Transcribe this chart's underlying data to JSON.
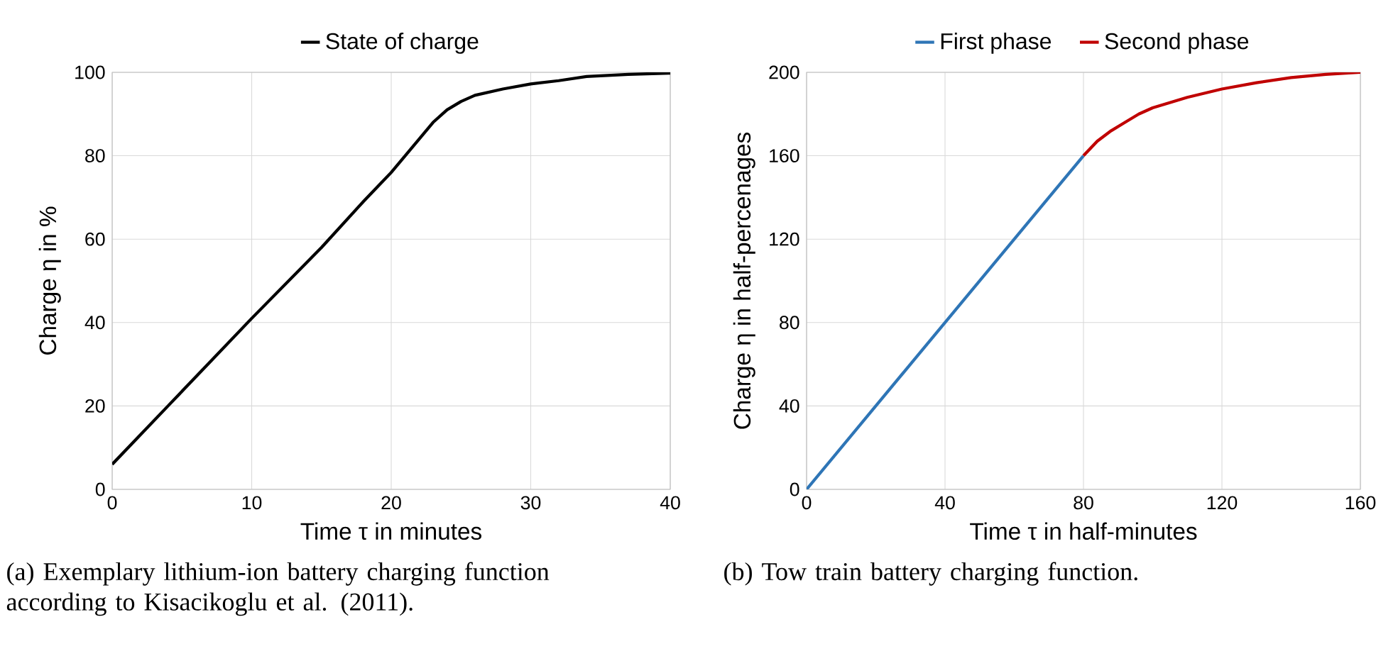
{
  "chart_data": [
    {
      "type": "line",
      "xlabel": "Time τ in minutes",
      "ylabel": "Charge η in %",
      "xlim": [
        0,
        40
      ],
      "ylim": [
        0,
        100
      ],
      "xticks": [
        0,
        10,
        20,
        30,
        40
      ],
      "yticks": [
        0,
        20,
        40,
        60,
        80,
        100
      ],
      "grid": true,
      "legend": "top",
      "series": [
        {
          "name": "State of charge",
          "color": "#000000",
          "x": [
            0,
            4,
            10,
            15,
            18,
            20,
            22,
            23,
            24,
            25,
            26,
            28,
            30,
            32,
            34,
            37,
            40
          ],
          "values": [
            6,
            20,
            41,
            58,
            69,
            76,
            84,
            88,
            91,
            93,
            94.5,
            96,
            97.2,
            98,
            99,
            99.5,
            99.8
          ]
        }
      ],
      "annotations": [
        "(a)  Exemplary lithium-ion battery charging function according to Kisacikoglu et al. (2011)."
      ]
    },
    {
      "type": "line",
      "xlabel": "Time τ in half-minutes",
      "ylabel": "Charge η in half-percenages",
      "xlim": [
        0,
        160
      ],
      "ylim": [
        0,
        200
      ],
      "xticks": [
        0,
        40,
        80,
        120,
        160
      ],
      "yticks": [
        0,
        40,
        80,
        120,
        160,
        200
      ],
      "grid": true,
      "legend": "top",
      "series": [
        {
          "name": "First phase",
          "color": "#2e75b6",
          "x": [
            0,
            80
          ],
          "values": [
            0,
            160
          ]
        },
        {
          "name": "Second phase",
          "color": "#c00000",
          "x": [
            80,
            84,
            88,
            92,
            96,
            100,
            110,
            120,
            130,
            140,
            150,
            160
          ],
          "values": [
            160,
            167,
            172,
            176,
            180,
            183,
            188,
            192,
            195,
            197.5,
            199,
            200
          ]
        }
      ],
      "annotations": [
        "(b)  Tow train battery charging function."
      ]
    }
  ]
}
